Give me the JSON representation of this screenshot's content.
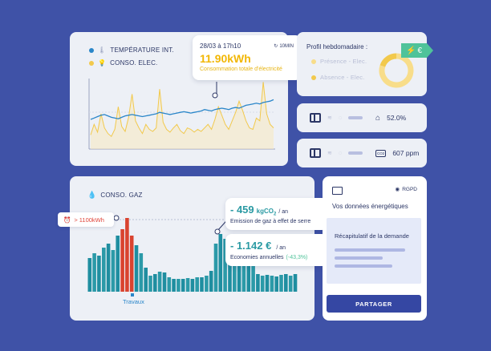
{
  "energy_card": {
    "legend_temp": "TEMPÉRATURE INT.",
    "legend_elec": "CONSO. ELEC.",
    "tooltip_date": "28/03 à 17h10",
    "tooltip_interval": "10MIN",
    "tooltip_value": "11.90kWh",
    "tooltip_caption": "Consommation totale d'électricité",
    "colors": {
      "temp": "#2a86c9",
      "elec": "#f2c94c"
    }
  },
  "weekly": {
    "title": "Profil hebdomadaire :",
    "badge": "€",
    "presence": "Présence - Elec.",
    "absence": "Absence - Elec."
  },
  "sensor_humidity": {
    "value": "52.0%"
  },
  "sensor_co2": {
    "unit_icon": "CO2",
    "value": "607 ppm"
  },
  "gas_card": {
    "title": "CONSO. GAZ",
    "alert": "> 1100kWh",
    "emission_value": "- 459",
    "emission_unit_main": "kgCO",
    "emission_unit_sub": "2",
    "emission_per": "/ an",
    "emission_caption": "Emission de gaz à effet de serre",
    "savings_value": "- 1.142 €",
    "savings_per": "/ an",
    "savings_caption": "Economies annuelles",
    "savings_pct": "(-43,3%)",
    "works_label": "Travaux"
  },
  "privacy": {
    "rgpd": "RGPD",
    "title": "Vos données énergétiques",
    "summary": "Récapitulatif de la demande",
    "share_button": "PARTAGER"
  },
  "chart_data": [
    {
      "type": "line",
      "series": [
        {
          "name": "TEMPÉRATURE INT.",
          "values": [
            42,
            44,
            46,
            48,
            49,
            47,
            45,
            44,
            43,
            45,
            47,
            48,
            49,
            48,
            47,
            46,
            47,
            48,
            49,
            50,
            52,
            51,
            50,
            49,
            50,
            51,
            52,
            53,
            52,
            51,
            52,
            53,
            54,
            56,
            55,
            54,
            56,
            57,
            58,
            57,
            56,
            58,
            59,
            58,
            60,
            62,
            63,
            64,
            65,
            64,
            66,
            67,
            68,
            70
          ]
        },
        {
          "name": "CONSO. ELEC.",
          "values": [
            20,
            35,
            24,
            50,
            30,
            22,
            18,
            28,
            60,
            32,
            25,
            45,
            78,
            40,
            30,
            22,
            35,
            28,
            25,
            30,
            85,
            38,
            28,
            24,
            30,
            35,
            26,
            22,
            30,
            28,
            24,
            28,
            25,
            30,
            35,
            28,
            42,
            60,
            48,
            35,
            28,
            40,
            52,
            68,
            55,
            40,
            30,
            28,
            44,
            40,
            95,
            50,
            35,
            30
          ]
        }
      ]
    },
    {
      "type": "bar",
      "threshold_label": "> 1100kWh",
      "series": [
        {
          "name": "CONSO. GAZ",
          "values": [
            42,
            48,
            45,
            55,
            60,
            52,
            70,
            78,
            92,
            70,
            58,
            48,
            30,
            20,
            22,
            25,
            24,
            18,
            16,
            16,
            16,
            17,
            16,
            18,
            18,
            20,
            26,
            60,
            72,
            66,
            60,
            55,
            48,
            40,
            34,
            32,
            22,
            20,
            21,
            20,
            19,
            21,
            22,
            20,
            22
          ]
        }
      ],
      "highlighted": [
        7,
        8,
        9
      ]
    },
    {
      "type": "pie",
      "slices": [
        {
          "name": "Présence - Elec.",
          "value": 80
        },
        {
          "name": "Absence - Elec.",
          "value": 20
        }
      ]
    }
  ]
}
